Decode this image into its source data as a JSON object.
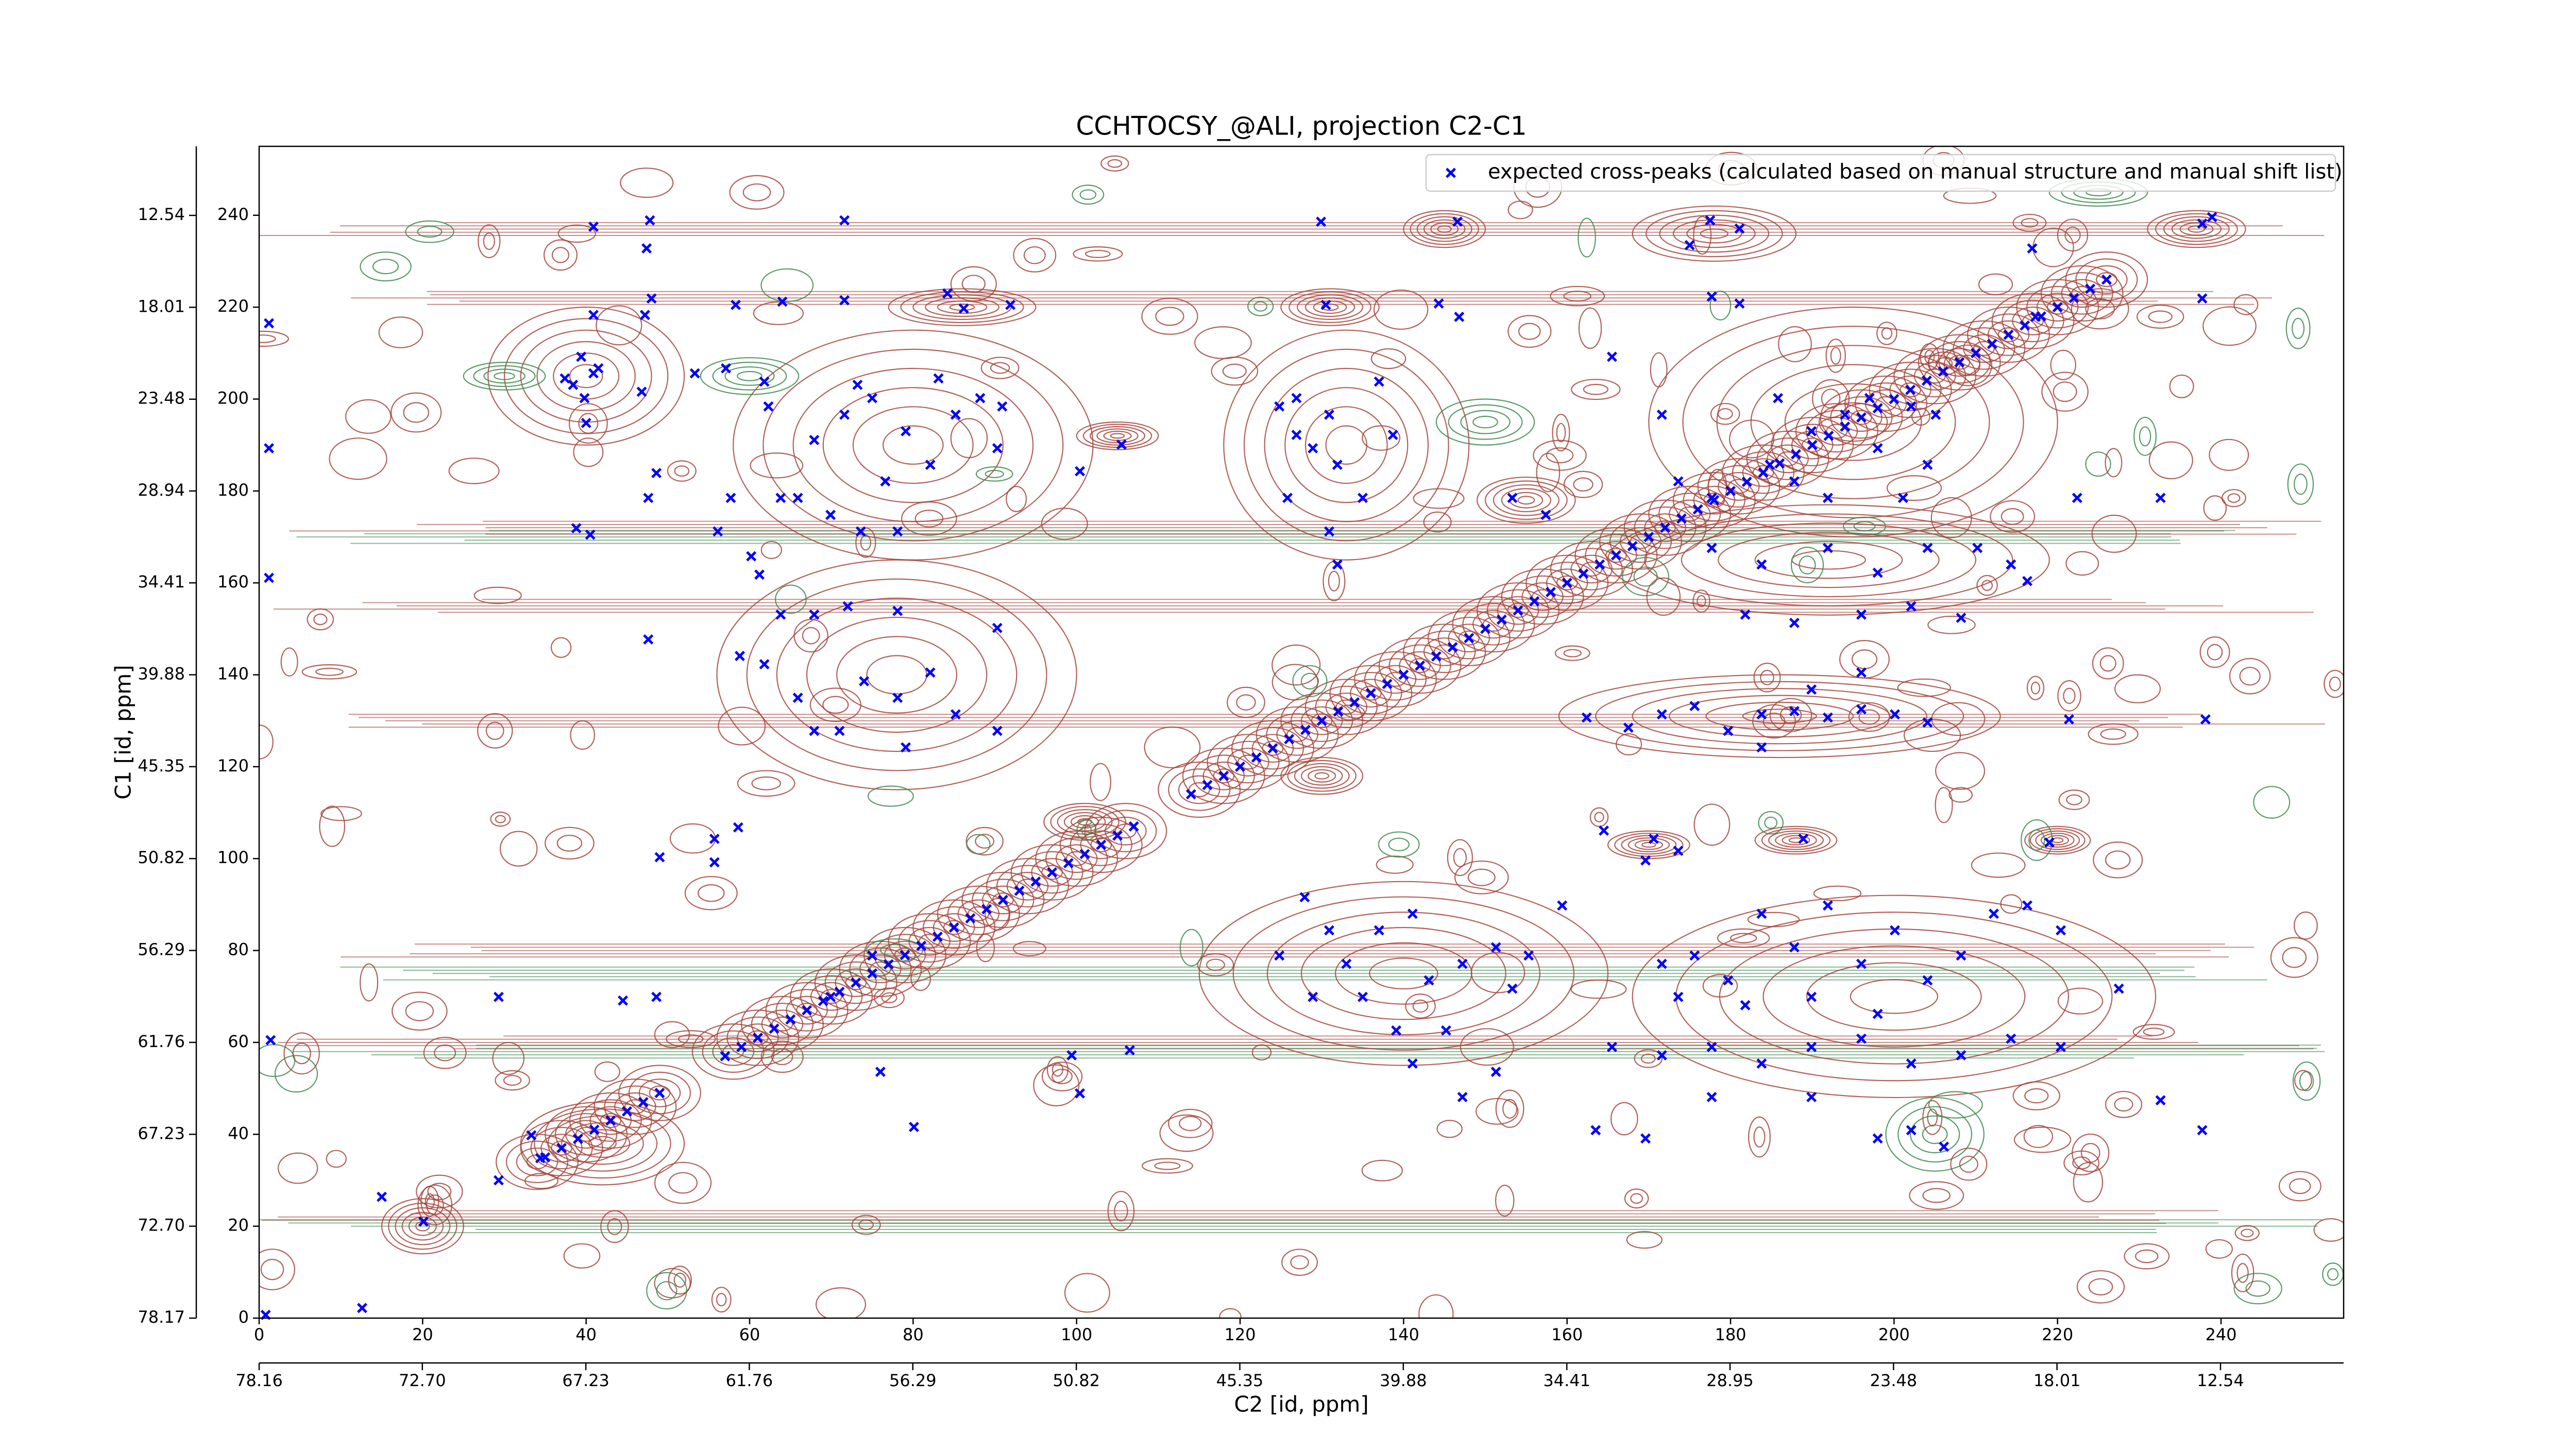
{
  "chart_data": {
    "type": "scatter",
    "title": "CCHTOCSY_@ALI, projection C2-C1",
    "x_label": "C2 [id, ppm]",
    "y_label": "C1 [id, ppm]",
    "xlim": [
      0,
      255
    ],
    "ylim": [
      0,
      255
    ],
    "xticks": [
      0,
      20,
      40,
      60,
      80,
      100,
      120,
      140,
      160,
      180,
      200,
      220,
      240
    ],
    "yticks": [
      0,
      20,
      40,
      60,
      80,
      100,
      120,
      140,
      160,
      180,
      200,
      220,
      240
    ],
    "x2lim": [
      78.16,
      8.42
    ],
    "x2ticks": [
      78.16,
      {
        "value": 72.7,
        "label": "72.70"
      },
      67.23,
      61.76,
      56.29,
      50.82,
      45.35,
      39.88,
      34.41,
      28.95,
      23.48,
      18.01,
      12.54
    ],
    "y2lim": [
      78.17,
      8.43
    ],
    "y2ticks": [
      78.17,
      {
        "value": 72.7,
        "label": "72.70"
      },
      67.23,
      61.76,
      56.29,
      50.82,
      45.35,
      39.88,
      34.41,
      28.94,
      23.48,
      18.01,
      12.54
    ],
    "legend": "upper right",
    "series": [
      {
        "name": "expected cross-peaks (calculated based on manual structure and manual shift list)",
        "color": "#0000ff",
        "x": [
          40.9,
          47.8,
          47.4,
          71.6,
          129.9,
          146.6,
          177.5,
          181.1,
          216.9,
          237.7,
          238.9,
          175.0,
          40.9,
          48.0,
          47.2,
          58.3,
          64.0,
          71.6,
          84.2,
          86.2,
          91.9,
          130.5,
          144.3,
          146.8,
          177.7,
          181.1,
          217.3,
          237.7,
          1.2,
          39.4,
          40.9,
          38.4,
          39.8,
          41.5,
          37.4,
          40.0,
          46.8,
          53.3,
          57.1,
          61.8,
          62.3,
          1.2,
          1.2,
          73.2,
          71.6,
          75.0,
          67.9,
          65.9,
          69.9,
          63.8,
          79.1,
          82.1,
          85.2,
          88.2,
          90.3,
          76.6,
          73.6,
          78.1,
          48.6,
          47.6,
          38.8,
          40.5,
          56.1,
          60.2,
          61.2,
          57.7,
          90.9,
          83.1,
          100.4,
          105.5,
          63.8,
          67.9,
          72.0,
          78.1,
          90.3,
          47.6,
          58.8,
          61.8,
          65.9,
          67.9,
          74.0,
          78.1,
          82.1,
          85.2,
          90.3,
          79.1,
          71.0,
          124.8,
          126.9,
          130.9,
          131.9,
          135.0,
          125.8,
          130.9,
          137.0,
          138.7,
          131.9,
          126.9,
          128.9,
          185.8,
          189.9,
          194.0,
          198.0,
          202.1,
          204.1,
          187.8,
          191.9,
          197.0,
          201.1,
          205.1,
          184.8,
          165.5,
          171.6,
          173.6,
          153.3,
          157.4,
          177.7,
          177.7,
          183.8,
          191.9,
          198.0,
          204.1,
          210.2,
          214.3,
          216.3,
          181.8,
          187.8,
          196.0,
          202.1,
          208.2,
          222.4,
          232.6,
          167.5,
          171.6,
          175.6,
          179.7,
          183.8,
          187.8,
          191.9,
          196.0,
          200.1,
          204.1,
          183.8,
          189.9,
          196.0,
          221.4,
          238.1,
          162.4,
          49.0,
          55.7,
          58.6,
          55.7,
          164.5,
          170.6,
          173.6,
          188.9,
          219.0,
          169.6,
          127.9,
          130.9,
          124.8,
          133.0,
          137.0,
          141.1,
          143.1,
          135.0,
          139.1,
          147.2,
          151.3,
          155.3,
          159.4,
          128.9,
          145.2,
          153.3,
          141.1,
          147.2,
          151.3,
          171.6,
          175.6,
          179.7,
          183.8,
          187.8,
          191.9,
          196.0,
          200.1,
          204.1,
          208.2,
          212.2,
          216.3,
          220.4,
          173.6,
          181.8,
          189.9,
          198.0,
          165.5,
          171.6,
          177.7,
          183.8,
          189.9,
          196.0,
          202.1,
          208.2,
          214.3,
          220.4,
          177.7,
          189.9,
          198.0,
          202.1,
          206.1,
          163.5,
          169.6,
          232.6,
          237.7,
          227.5,
          1.4,
          29.3,
          44.5,
          48.6,
          69.9,
          76.0,
          80.1,
          100.4,
          99.4,
          106.5,
          75.0,
          29.3,
          34.4,
          33.3,
          0.8,
          12.6,
          20.1,
          15.0,
          35,
          37,
          39,
          41,
          43,
          45,
          47,
          49,
          57,
          59,
          61,
          63,
          65,
          67,
          69,
          71,
          73,
          75,
          77,
          79,
          81,
          83,
          85,
          87,
          89,
          91,
          93,
          95,
          97,
          99,
          101,
          103,
          105,
          107,
          114,
          116,
          118,
          120,
          122,
          124,
          126,
          128,
          130,
          132,
          134,
          136,
          138,
          140,
          142,
          144,
          146,
          148,
          150,
          152,
          154,
          156,
          158,
          160,
          162,
          164,
          166,
          168,
          170,
          172,
          174,
          176,
          178,
          180,
          182,
          184,
          186,
          188,
          190,
          192,
          194,
          196,
          198,
          200,
          202,
          204,
          206,
          208,
          210,
          212,
          214,
          216,
          218,
          220,
          222,
          224,
          226
        ],
        "values": [
          237.5,
          238.9,
          232.8,
          238.9,
          238.6,
          238.6,
          238.9,
          237.1,
          232.8,
          238.2,
          239.6,
          233.5,
          218.3,
          221.9,
          218.3,
          220.5,
          221.2,
          221.5,
          223.0,
          219.7,
          220.5,
          220.5,
          220.8,
          217.9,
          222.3,
          220.8,
          217.9,
          221.9,
          216.5,
          209.2,
          205.6,
          203.1,
          200.2,
          206.7,
          204.5,
          194.8,
          201.6,
          205.6,
          206.7,
          203.8,
          198.4,
          189.3,
          161.1,
          203.1,
          196.6,
          200.2,
          191.1,
          178.5,
          174.8,
          178.5,
          193.0,
          185.7,
          196.6,
          200.2,
          189.3,
          182.1,
          171.2,
          171.2,
          183.9,
          178.5,
          171.9,
          170.5,
          171.2,
          165.8,
          161.8,
          178.5,
          198.4,
          204.5,
          184.3,
          190.1,
          153.1,
          153.1,
          154.9,
          153.9,
          150.2,
          147.7,
          144.1,
          142.3,
          135.0,
          127.8,
          138.6,
          135.0,
          140.5,
          131.4,
          127.8,
          124.2,
          127.8,
          198.4,
          192.2,
          196.6,
          185.7,
          178.5,
          178.5,
          171.2,
          203.8,
          192.2,
          164.0,
          200.2,
          189.3,
          200.2,
          193.0,
          196.6,
          189.3,
          198.4,
          185.7,
          182.1,
          178.5,
          200.2,
          178.5,
          196.6,
          185.7,
          209.2,
          196.6,
          182.1,
          178.5,
          174.8,
          178.5,
          167.6,
          164.0,
          167.6,
          162.2,
          167.6,
          167.6,
          164.0,
          160.4,
          153.1,
          151.3,
          153.1,
          154.9,
          152.4,
          178.5,
          178.5,
          128.5,
          131.4,
          133.2,
          127.8,
          131.4,
          132.1,
          130.7,
          132.5,
          131.4,
          129.6,
          124.2,
          136.8,
          140.5,
          130.3,
          130.3,
          130.7,
          100.3,
          99.2,
          106.8,
          104.3,
          106.1,
          104.3,
          101.7,
          104.3,
          103.5,
          99.6,
          91.6,
          84.4,
          78.9,
          77.1,
          84.4,
          88.0,
          73.5,
          69.9,
          62.6,
          77.1,
          80.7,
          78.9,
          89.8,
          69.9,
          62.6,
          71.7,
          55.4,
          48.1,
          53.6,
          77.1,
          78.9,
          73.5,
          88.0,
          80.7,
          89.8,
          77.1,
          84.4,
          73.5,
          78.9,
          88.0,
          89.8,
          84.4,
          69.9,
          68.1,
          69.9,
          66.2,
          59.0,
          57.2,
          59.0,
          55.4,
          59.0,
          60.8,
          55.4,
          57.2,
          60.8,
          59.0,
          48.1,
          48.1,
          39.1,
          40.9,
          37.3,
          40.9,
          39.1,
          47.4,
          40.9,
          71.7,
          60.5,
          69.9,
          69.1,
          69.9,
          69.9,
          53.6,
          41.6,
          48.9,
          57.2,
          58.3,
          78.9,
          30.0,
          34.8,
          39.8,
          0.7,
          2.2,
          21.0,
          26.4,
          35,
          37,
          39,
          41,
          43,
          45,
          47,
          49,
          57,
          59,
          61,
          63,
          65,
          67,
          69,
          71,
          73,
          75,
          77,
          79,
          81,
          83,
          85,
          87,
          89,
          91,
          93,
          95,
          97,
          99,
          101,
          103,
          105,
          107,
          114,
          116,
          118,
          120,
          122,
          124,
          126,
          128,
          130,
          132,
          134,
          136,
          138,
          140,
          142,
          144,
          146,
          148,
          150,
          152,
          154,
          156,
          158,
          160,
          162,
          164,
          166,
          168,
          170,
          172,
          174,
          176,
          178,
          180,
          182,
          184,
          186,
          188,
          190,
          192,
          194,
          196,
          198,
          200,
          202,
          204,
          206,
          208,
          210,
          212,
          214,
          216,
          218,
          220,
          222,
          224,
          226
        ]
      }
    ]
  }
}
